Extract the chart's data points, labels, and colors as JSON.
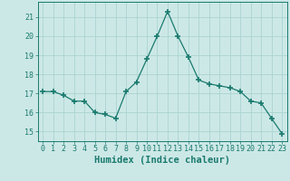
{
  "x": [
    0,
    1,
    2,
    3,
    4,
    5,
    6,
    7,
    8,
    9,
    10,
    11,
    12,
    13,
    14,
    15,
    16,
    17,
    18,
    19,
    20,
    21,
    22,
    23
  ],
  "y": [
    17.1,
    17.1,
    16.9,
    16.6,
    16.6,
    16.0,
    15.9,
    15.7,
    17.1,
    17.6,
    18.8,
    20.0,
    21.3,
    20.0,
    18.9,
    17.7,
    17.5,
    17.4,
    17.3,
    17.1,
    16.6,
    16.5,
    15.7,
    14.9
  ],
  "line_color": "#1a7a6e",
  "marker": "+",
  "marker_size": 4,
  "bg_color": "#cce8e6",
  "grid_color": "#aad4d2",
  "tick_color": "#1a7a6e",
  "label_color": "#1a7a6e",
  "xlabel": "Humidex (Indice chaleur)",
  "xlabel_fontsize": 7.5,
  "ylim": [
    14.5,
    21.8
  ],
  "yticks": [
    15,
    16,
    17,
    18,
    19,
    20,
    21
  ],
  "xtick_labels": [
    "0",
    "1",
    "2",
    "3",
    "4",
    "5",
    "6",
    "7",
    "8",
    "9",
    "10",
    "11",
    "12",
    "13",
    "14",
    "15",
    "16",
    "17",
    "18",
    "19",
    "20",
    "21",
    "22",
    "23"
  ],
  "tick_fontsize": 6.0
}
